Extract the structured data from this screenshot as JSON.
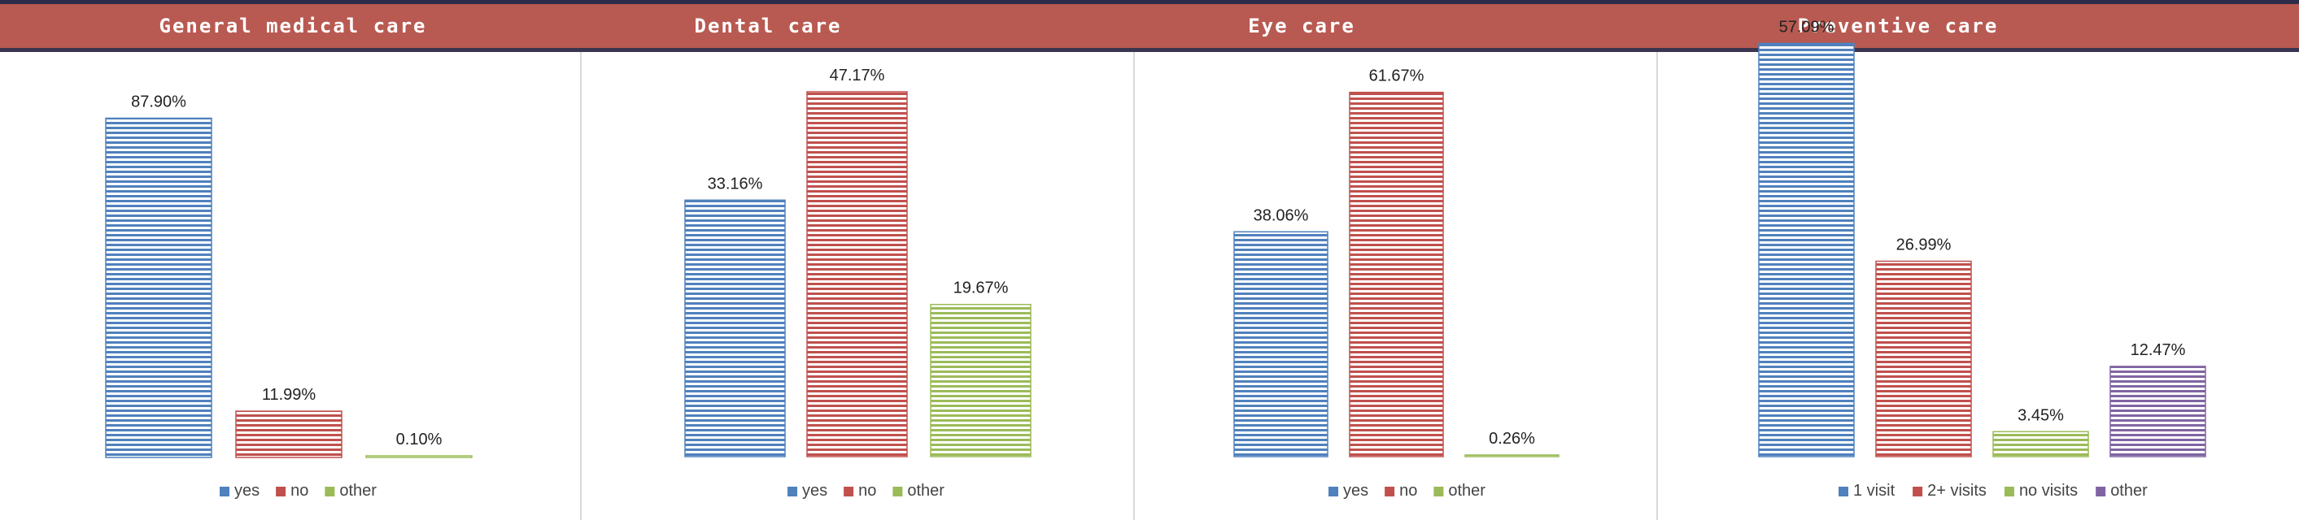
{
  "colors": {
    "header_bg": "#b85a52",
    "blue": "#4f81bd",
    "red": "#c0504d",
    "green": "#9bbb59",
    "purple": "#8064a2"
  },
  "chart_data": [
    {
      "type": "bar",
      "title": "General medical care",
      "categories": [
        "yes",
        "no",
        "other"
      ],
      "values": [
        87.9,
        11.99,
        0.1
      ],
      "data_labels": [
        "87.90%",
        "11.99%",
        "0.10%"
      ],
      "legend": [
        "yes",
        "no",
        "other"
      ],
      "legend_position": "bottom",
      "grid": false
    },
    {
      "type": "bar",
      "title": "Dental care",
      "categories": [
        "yes",
        "no",
        "other"
      ],
      "values": [
        33.16,
        47.17,
        19.67
      ],
      "data_labels": [
        "33.16%",
        "47.17%",
        "19.67%"
      ],
      "legend": [
        "yes",
        "no",
        "other"
      ],
      "legend_position": "bottom",
      "grid": false
    },
    {
      "type": "bar",
      "title": "Eye care",
      "categories": [
        "yes",
        "no",
        "other"
      ],
      "values": [
        38.06,
        61.67,
        0.26
      ],
      "data_labels": [
        "38.06%",
        "61.67%",
        "0.26%"
      ],
      "legend": [
        "yes",
        "no",
        "other"
      ],
      "legend_position": "bottom",
      "grid": false
    },
    {
      "type": "bar",
      "title": "Preventive care",
      "categories": [
        "1 visit",
        "2+ visits",
        "no visits",
        "other"
      ],
      "values": [
        57.09,
        26.99,
        3.45,
        12.47
      ],
      "data_labels": [
        "57.09%",
        "26.99%",
        "3.45%",
        "12.47%"
      ],
      "legend": [
        "1 visit",
        "2+ visits",
        "no visits",
        "other"
      ],
      "legend_position": "bottom",
      "grid": false
    }
  ]
}
